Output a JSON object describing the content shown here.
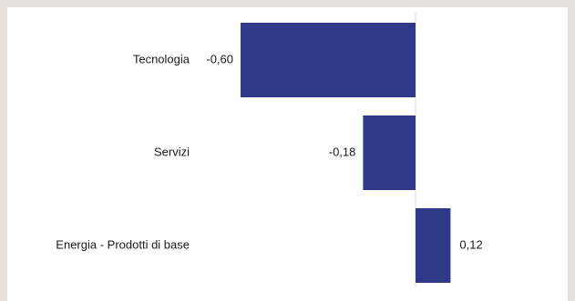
{
  "chart_data": {
    "type": "bar",
    "orientation": "horizontal",
    "title": "",
    "xlabel": "",
    "ylabel": "",
    "categories": [
      "Tecnologia",
      "Servizi",
      "Energia - Prodotti di base"
    ],
    "values": [
      -0.6,
      -0.18,
      0.12
    ],
    "value_labels": [
      "-0,60",
      "-0,18",
      "0,12"
    ],
    "xlim": [
      -0.6,
      0.12
    ],
    "grid": false,
    "legend": "none",
    "bar_color": "#2e3a87",
    "axis_color": "#d9d9d9"
  }
}
